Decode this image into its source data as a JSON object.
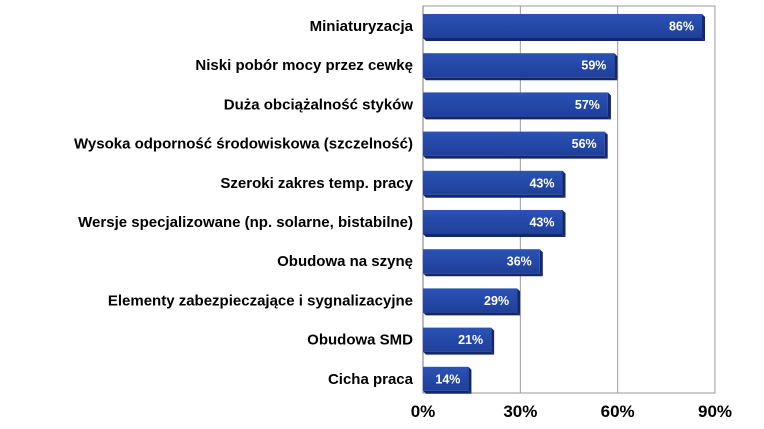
{
  "chart_data": {
    "type": "bar",
    "orientation": "horizontal",
    "categories": [
      "Miniaturyzacja",
      "Niski pobór mocy przez cewkę",
      "Duża obciążalność styków",
      "Wysoka odporność środowiskowa (szczelność)",
      "Szeroki zakres temp. pracy",
      "Wersje specjalizowane (np. solarne, bistabilne)",
      "Obudowa na szynę",
      "Elementy zabezpieczające i sygnalizacyjne",
      "Obudowa SMD",
      "Cicha praca"
    ],
    "values": [
      86,
      59,
      57,
      56,
      43,
      43,
      36,
      29,
      21,
      14
    ],
    "data_labels": [
      "86%",
      "59%",
      "57%",
      "56%",
      "43%",
      "43%",
      "36%",
      "29%",
      "21%",
      "14%"
    ],
    "xlim": [
      0,
      90
    ],
    "x_ticks": [
      0,
      30,
      60,
      90
    ],
    "x_tick_labels": [
      "0%",
      "30%",
      "60%",
      "90%"
    ],
    "grid": true,
    "legend": "none",
    "colors": {
      "bar": "#1f3f9a",
      "bar_top": "#2b52b5",
      "bar_side": "#12286b",
      "grid": "#9a9a9a",
      "label_text": "#ffffff"
    }
  }
}
